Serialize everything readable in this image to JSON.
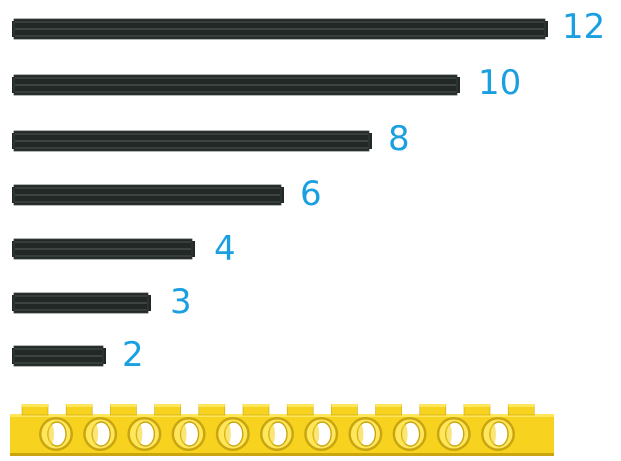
{
  "colors": {
    "axle_body": "#222826",
    "axle_edge": "#3b433f",
    "axle_highlight": "#4b5450",
    "label": "#1a9fe0",
    "brick_face": "#f7d320",
    "brick_top": "#ffe65a",
    "brick_shadow": "#c9a510"
  },
  "axles": [
    {
      "length": 12,
      "label": "12"
    },
    {
      "length": 10,
      "label": "10"
    },
    {
      "length": 8,
      "label": "8"
    },
    {
      "length": 6,
      "label": "6"
    },
    {
      "length": 4,
      "label": "4"
    },
    {
      "length": 3,
      "label": "3"
    },
    {
      "length": 2,
      "label": "2"
    }
  ],
  "brick": {
    "type": "technic-beam",
    "holes": 11,
    "studs": 12,
    "icon": "technic-brick-icon"
  }
}
